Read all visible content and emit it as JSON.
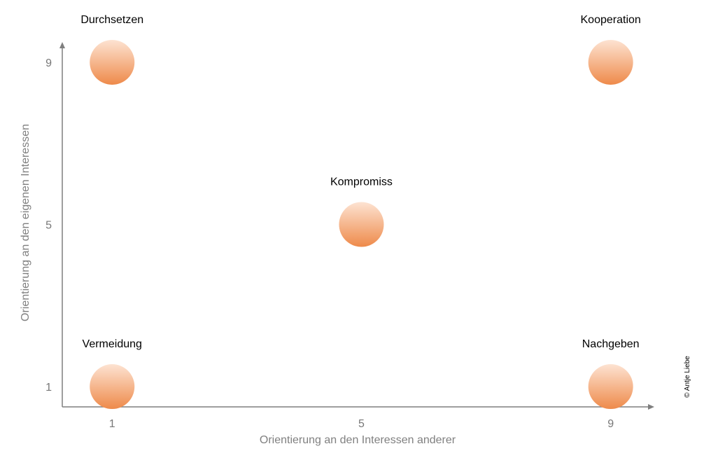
{
  "chart_data": {
    "type": "scatter",
    "xlabel": "Orientierung an den Interessen anderer",
    "ylabel": "Orientierung an den eigenen Interessen",
    "x_ticks": [
      "1",
      "5",
      "9"
    ],
    "y_ticks": [
      "1",
      "5",
      "9"
    ],
    "xlim": [
      0.2,
      9.7
    ],
    "ylim": [
      0.5,
      9.5
    ],
    "grid": false,
    "points": [
      {
        "label": "Durchsetzen",
        "x": 1,
        "y": 9
      },
      {
        "label": "Kooperation",
        "x": 9,
        "y": 9
      },
      {
        "label": "Kompromiss",
        "x": 5,
        "y": 5
      },
      {
        "label": "Vermeidung",
        "x": 1,
        "y": 1
      },
      {
        "label": "Nachgeben",
        "x": 9,
        "y": 1
      }
    ],
    "colors": {
      "point_light": "#fde3d2",
      "point_dark": "#ee8a4a",
      "axis": "#7f7f7f"
    }
  },
  "copyright": "© Antje Liebe"
}
